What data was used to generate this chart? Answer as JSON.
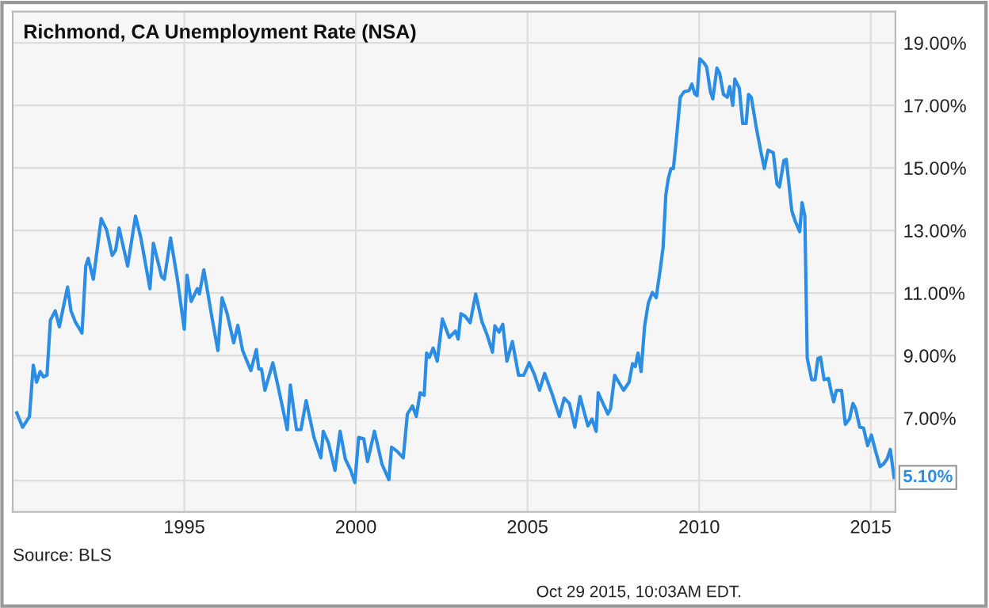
{
  "chart_data": {
    "type": "line",
    "title": "Richmond, CA Unemployment Rate (NSA)",
    "x": [
      1990.12,
      1990.29,
      1990.49,
      1990.6,
      1990.7,
      1990.8,
      1990.9,
      1991.0,
      1991.1,
      1991.24,
      1991.36,
      1991.47,
      1991.6,
      1991.7,
      1991.82,
      1992.02,
      1992.13,
      1992.2,
      1992.35,
      1992.58,
      1992.74,
      1992.9,
      1993.0,
      1993.1,
      1993.35,
      1993.58,
      1993.73,
      1994.0,
      1994.1,
      1994.34,
      1994.42,
      1994.6,
      1994.8,
      1995.0,
      1995.08,
      1995.2,
      1995.38,
      1995.44,
      1995.57,
      1995.8,
      1995.98,
      1996.1,
      1996.25,
      1996.44,
      1996.56,
      1996.7,
      1996.94,
      1997.1,
      1997.17,
      1997.25,
      1997.35,
      1997.58,
      1997.74,
      1998.0,
      1998.09,
      1998.27,
      1998.4,
      1998.55,
      1998.78,
      1998.98,
      1999.05,
      1999.2,
      1999.39,
      1999.54,
      1999.69,
      1999.85,
      1999.97,
      2000.08,
      2000.23,
      2000.34,
      2000.54,
      2000.76,
      2000.96,
      2001.04,
      2001.19,
      2001.38,
      2001.5,
      2001.65,
      2001.76,
      2001.87,
      2001.99,
      2002.06,
      2002.14,
      2002.25,
      2002.37,
      2002.52,
      2002.72,
      2002.9,
      2002.98,
      2003.06,
      2003.18,
      2003.33,
      2003.49,
      2003.67,
      2003.82,
      2003.98,
      2004.05,
      2004.17,
      2004.28,
      2004.4,
      2004.56,
      2004.74,
      2004.89,
      2005.05,
      2005.2,
      2005.35,
      2005.5,
      2005.73,
      2005.93,
      2006.07,
      2006.22,
      2006.38,
      2006.53,
      2006.76,
      2006.88,
      2007.0,
      2007.06,
      2007.34,
      2007.42,
      2007.54,
      2007.8,
      2007.96,
      2008.06,
      2008.14,
      2008.22,
      2008.31,
      2008.41,
      2008.52,
      2008.64,
      2008.75,
      2008.87,
      2008.95,
      2009.03,
      2009.1,
      2009.18,
      2009.25,
      2009.33,
      2009.45,
      2009.56,
      2009.71,
      2009.79,
      2009.87,
      2009.94,
      2010.02,
      2010.14,
      2010.22,
      2010.33,
      2010.4,
      2010.52,
      2010.6,
      2010.71,
      2010.82,
      2010.89,
      2010.98,
      2011.04,
      2011.17,
      2011.27,
      2011.37,
      2011.44,
      2011.52,
      2011.66,
      2011.81,
      2011.9,
      2012.01,
      2012.16,
      2012.27,
      2012.34,
      2012.47,
      2012.54,
      2012.7,
      2012.8,
      2012.93,
      2013.0,
      2013.08,
      2013.15,
      2013.28,
      2013.38,
      2013.46,
      2013.54,
      2013.64,
      2013.77,
      2013.84,
      2013.92,
      2014.0,
      2014.15,
      2014.26,
      2014.38,
      2014.48,
      2014.56,
      2014.68,
      2014.79,
      2014.91,
      2015.02,
      2015.14,
      2015.27,
      2015.37,
      2015.48,
      2015.57,
      2015.68
    ],
    "series": [
      {
        "color": "#2b8de3",
        "values": [
          7.17,
          6.71,
          7.05,
          8.69,
          8.15,
          8.49,
          8.32,
          8.37,
          10.14,
          10.43,
          9.92,
          10.51,
          11.19,
          10.43,
          10.09,
          9.72,
          11.86,
          12.11,
          11.44,
          13.38,
          13.01,
          12.2,
          12.37,
          13.08,
          11.86,
          13.46,
          12.79,
          11.14,
          12.59,
          11.52,
          11.44,
          12.76,
          11.44,
          9.84,
          11.57,
          10.73,
          11.14,
          10.97,
          11.74,
          10.26,
          9.16,
          10.85,
          10.34,
          9.41,
          9.97,
          9.16,
          8.52,
          9.19,
          8.57,
          8.57,
          7.89,
          8.77,
          7.98,
          6.63,
          8.06,
          6.63,
          6.63,
          7.56,
          6.38,
          5.73,
          6.58,
          6.21,
          5.33,
          6.58,
          5.7,
          5.33,
          4.94,
          6.38,
          6.34,
          5.61,
          6.58,
          5.53,
          5.03,
          6.07,
          5.95,
          5.73,
          7.13,
          7.39,
          7.05,
          7.81,
          7.73,
          9.08,
          8.94,
          9.24,
          8.82,
          10.17,
          9.58,
          9.78,
          9.53,
          10.34,
          10.26,
          10.05,
          10.97,
          10.09,
          9.67,
          9.11,
          9.95,
          9.75,
          10.0,
          8.82,
          9.45,
          8.37,
          8.37,
          8.77,
          8.4,
          7.89,
          8.43,
          7.73,
          7.05,
          7.64,
          7.47,
          6.71,
          7.69,
          6.75,
          6.97,
          6.58,
          7.81,
          7.13,
          7.3,
          8.37,
          7.89,
          8.15,
          8.74,
          8.65,
          9.08,
          8.49,
          9.92,
          10.68,
          11.02,
          10.85,
          11.78,
          12.45,
          14.14,
          14.65,
          14.98,
          14.98,
          15.83,
          17.26,
          17.43,
          17.48,
          17.68,
          17.38,
          17.31,
          18.49,
          18.36,
          18.22,
          17.43,
          17.21,
          18.19,
          18.02,
          17.35,
          17.26,
          17.6,
          17.0,
          17.84,
          17.55,
          16.42,
          16.42,
          17.35,
          17.26,
          16.33,
          15.46,
          14.98,
          15.57,
          15.49,
          14.48,
          14.39,
          15.24,
          15.27,
          13.63,
          13.3,
          12.96,
          13.89,
          13.46,
          8.91,
          8.23,
          8.23,
          8.91,
          8.94,
          8.23,
          8.27,
          7.89,
          7.52,
          7.89,
          7.89,
          6.8,
          6.97,
          7.47,
          7.3,
          6.71,
          6.68,
          6.12,
          6.46,
          5.95,
          5.45,
          5.53,
          5.7,
          6.0,
          5.1
        ]
      }
    ],
    "xlim": [
      1990.0,
      2015.72
    ],
    "xticks": [
      1995,
      2000,
      2005,
      2010,
      2015
    ],
    "ylim": [
      4,
      20
    ],
    "yticks": [
      {
        "value": 5,
        "label": null
      },
      {
        "value": 7,
        "label": "7.00%"
      },
      {
        "value": 9,
        "label": "9.00%"
      },
      {
        "value": 11,
        "label": "11.00%"
      },
      {
        "value": 13,
        "label": "13.00%"
      },
      {
        "value": 15,
        "label": "15.00%"
      },
      {
        "value": 17,
        "label": "17.00%"
      },
      {
        "value": 19,
        "label": "19.00%"
      }
    ],
    "grid": true,
    "marker": "none",
    "line_style": "solid",
    "annotations": [
      {
        "text": "5.10%",
        "x": 2015.68,
        "y": 5.1
      },
      "Source: BLS",
      "Oct 29 2015, 10:03AM EDT."
    ]
  }
}
